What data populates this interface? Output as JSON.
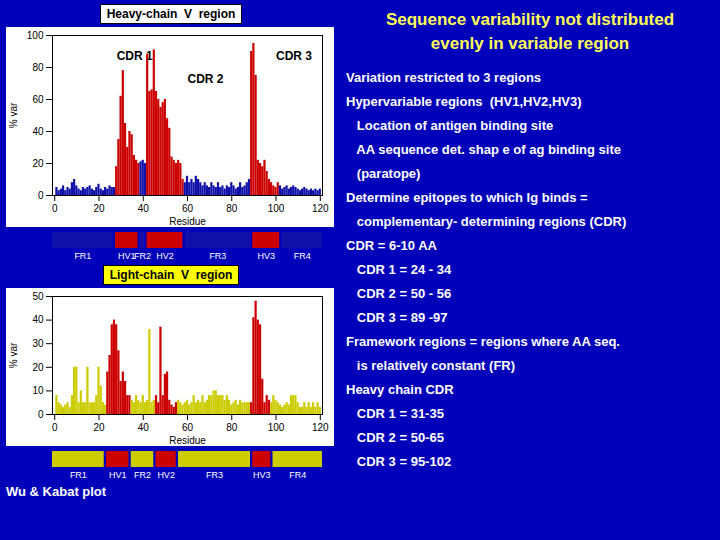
{
  "chart_data": [
    {
      "type": "bar",
      "title": "Heavy-chain  V  region",
      "xlabel": "Residue",
      "ylabel": "% var",
      "x": [
        1,
        2,
        3,
        4,
        5,
        6,
        7,
        8,
        9,
        10,
        11,
        12,
        13,
        14,
        15,
        16,
        17,
        18,
        19,
        20,
        21,
        22,
        23,
        24,
        25,
        26,
        27,
        28,
        29,
        30,
        31,
        32,
        33,
        34,
        35,
        36,
        37,
        38,
        39,
        40,
        41,
        42,
        43,
        44,
        45,
        46,
        47,
        48,
        49,
        50,
        51,
        52,
        53,
        54,
        55,
        56,
        57,
        58,
        59,
        60,
        61,
        62,
        63,
        64,
        65,
        66,
        67,
        68,
        69,
        70,
        71,
        72,
        73,
        74,
        75,
        76,
        77,
        78,
        79,
        80,
        81,
        82,
        83,
        84,
        85,
        86,
        87,
        88,
        89,
        90,
        91,
        92,
        93,
        94,
        95,
        96,
        97,
        98,
        99,
        100,
        101,
        102,
        103,
        104,
        105,
        106,
        107,
        108,
        109,
        110,
        111,
        112,
        113,
        114,
        115,
        116,
        117,
        118,
        119,
        120
      ],
      "values": [
        5,
        3,
        4,
        6,
        3,
        5,
        4,
        8,
        10,
        6,
        4,
        3,
        5,
        4,
        5,
        6,
        4,
        3,
        5,
        7,
        4,
        3,
        5,
        4,
        6,
        5,
        5,
        18,
        35,
        62,
        78,
        45,
        30,
        40,
        38,
        25,
        22,
        20,
        21,
        22,
        20,
        88,
        65,
        66,
        91,
        65,
        60,
        55,
        58,
        60,
        48,
        42,
        24,
        22,
        20,
        22,
        20,
        10,
        8,
        12,
        8,
        10,
        8,
        12,
        10,
        8,
        6,
        8,
        6,
        5,
        8,
        6,
        5,
        8,
        5,
        6,
        4,
        6,
        5,
        8,
        6,
        4,
        5,
        8,
        5,
        6,
        8,
        10,
        90,
        95,
        75,
        22,
        20,
        18,
        22,
        15,
        10,
        8,
        6,
        5,
        8,
        6,
        4,
        5,
        6,
        4,
        5,
        6,
        5,
        4,
        3,
        4,
        5,
        4,
        3,
        4,
        3,
        4,
        3,
        4
      ],
      "colors": [
        "#1111aa",
        "#1111aa",
        "#1111aa",
        "#1111aa",
        "#1111aa",
        "#1111aa",
        "#1111aa",
        "#1111aa",
        "#1111aa",
        "#1111aa",
        "#1111aa",
        "#1111aa",
        "#1111aa",
        "#1111aa",
        "#1111aa",
        "#1111aa",
        "#1111aa",
        "#1111aa",
        "#1111aa",
        "#1111aa",
        "#1111aa",
        "#1111aa",
        "#1111aa",
        "#1111aa",
        "#1111aa",
        "#1111aa",
        "#1111aa",
        "#cc0000",
        "#cc0000",
        "#cc0000",
        "#cc0000",
        "#cc0000",
        "#cc0000",
        "#cc0000",
        "#cc0000",
        "#cc0000",
        "#cc0000",
        "#cc0000",
        "#1111aa",
        "#1111aa",
        "#1111aa",
        "#cc0000",
        "#cc0000",
        "#cc0000",
        "#cc0000",
        "#cc0000",
        "#cc0000",
        "#cc0000",
        "#cc0000",
        "#cc0000",
        "#cc0000",
        "#cc0000",
        "#cc0000",
        "#cc0000",
        "#cc0000",
        "#cc0000",
        "#cc0000",
        "#cc0000",
        "#1111aa",
        "#1111aa",
        "#1111aa",
        "#1111aa",
        "#1111aa",
        "#1111aa",
        "#1111aa",
        "#1111aa",
        "#1111aa",
        "#1111aa",
        "#1111aa",
        "#1111aa",
        "#1111aa",
        "#1111aa",
        "#1111aa",
        "#1111aa",
        "#1111aa",
        "#1111aa",
        "#1111aa",
        "#1111aa",
        "#1111aa",
        "#1111aa",
        "#1111aa",
        "#1111aa",
        "#1111aa",
        "#1111aa",
        "#1111aa",
        "#1111aa",
        "#1111aa",
        "#1111aa",
        "#cc0000",
        "#cc0000",
        "#cc0000",
        "#cc0000",
        "#cc0000",
        "#cc0000",
        "#cc0000",
        "#cc0000",
        "#cc0000",
        "#cc0000",
        "#cc0000",
        "#cc0000",
        "#cc0000",
        "#1111aa",
        "#1111aa",
        "#1111aa",
        "#1111aa",
        "#1111aa",
        "#1111aa",
        "#1111aa",
        "#1111aa",
        "#1111aa",
        "#1111aa",
        "#1111aa",
        "#1111aa",
        "#1111aa",
        "#1111aa",
        "#1111aa",
        "#1111aa",
        "#1111aa",
        "#1111aa",
        "#1111aa"
      ],
      "xlim": [
        -1,
        121
      ],
      "xticks": [
        0,
        20,
        40,
        60,
        80,
        100,
        120
      ],
      "ylim": [
        0,
        100
      ],
      "yticks": [
        0,
        20,
        40,
        60,
        80,
        100
      ],
      "grid": false,
      "annotations": [
        {
          "text": "CDR 1",
          "x": 28,
          "y": 87
        },
        {
          "text": "CDR 2",
          "x": 60,
          "y": 73
        },
        {
          "text": "CDR 3",
          "x": 100,
          "y": 87
        }
      ],
      "regions": [
        {
          "name": "FR1",
          "start": 0,
          "end": 27,
          "color": "#1111aa"
        },
        {
          "name": "HV1",
          "start": 28,
          "end": 38,
          "color": "#cc0000"
        },
        {
          "name": "FR2",
          "start": 39,
          "end": 41,
          "color": "#1111aa"
        },
        {
          "name": "HV2",
          "start": 42,
          "end": 58,
          "color": "#cc0000"
        },
        {
          "name": "FR3",
          "start": 59,
          "end": 88,
          "color": "#1111aa"
        },
        {
          "name": "HV3",
          "start": 89,
          "end": 101,
          "color": "#cc0000"
        },
        {
          "name": "FR4",
          "start": 102,
          "end": 120,
          "color": "#1111aa"
        }
      ]
    },
    {
      "type": "bar",
      "title": "Light-chain  V  region",
      "xlabel": "Residue",
      "ylabel": "% var",
      "x": [
        1,
        2,
        3,
        4,
        5,
        6,
        7,
        8,
        9,
        10,
        11,
        12,
        13,
        14,
        15,
        16,
        17,
        18,
        19,
        20,
        21,
        22,
        23,
        24,
        25,
        26,
        27,
        28,
        29,
        30,
        31,
        32,
        33,
        34,
        35,
        36,
        37,
        38,
        39,
        40,
        41,
        42,
        43,
        44,
        45,
        46,
        47,
        48,
        49,
        50,
        51,
        52,
        53,
        54,
        55,
        56,
        57,
        58,
        59,
        60,
        61,
        62,
        63,
        64,
        65,
        66,
        67,
        68,
        69,
        70,
        71,
        72,
        73,
        74,
        75,
        76,
        77,
        78,
        79,
        80,
        81,
        82,
        83,
        84,
        85,
        86,
        87,
        88,
        89,
        90,
        91,
        92,
        93,
        94,
        95,
        96,
        97,
        98,
        99,
        100,
        101,
        102,
        103,
        104,
        105,
        106,
        107,
        108,
        109,
        110,
        111,
        112,
        113,
        114,
        115,
        116,
        117,
        118,
        119,
        120
      ],
      "values": [
        8,
        5,
        4,
        3,
        4,
        5,
        3,
        8,
        20,
        20,
        5,
        10,
        5,
        5,
        20,
        5,
        5,
        5,
        8,
        20,
        12,
        5,
        4,
        18,
        25,
        38,
        40,
        38,
        27,
        14,
        18,
        14,
        8,
        8,
        6,
        5,
        8,
        6,
        5,
        8,
        5,
        6,
        36,
        5,
        6,
        8,
        5,
        37,
        8,
        17,
        18,
        6,
        4,
        3,
        5,
        6,
        5,
        4,
        5,
        6,
        4,
        5,
        8,
        5,
        6,
        5,
        8,
        5,
        6,
        8,
        8,
        10,
        10,
        8,
        8,
        8,
        6,
        8,
        6,
        4,
        5,
        6,
        4,
        6,
        5,
        5,
        5,
        5,
        5,
        41,
        48,
        40,
        38,
        15,
        5,
        8,
        6,
        5,
        8,
        6,
        5,
        4,
        3,
        4,
        5,
        4,
        8,
        8,
        8,
        5,
        3,
        3,
        5,
        3,
        5,
        3,
        5,
        3,
        5,
        3
      ],
      "colors": [
        "#cccc00",
        "#cccc00",
        "#cccc00",
        "#cccc00",
        "#cccc00",
        "#cccc00",
        "#cccc00",
        "#cccc00",
        "#cccc00",
        "#cccc00",
        "#cccc00",
        "#cccc00",
        "#cccc00",
        "#cccc00",
        "#cccc00",
        "#cccc00",
        "#cccc00",
        "#cccc00",
        "#cccc00",
        "#cccc00",
        "#cccc00",
        "#cccc00",
        "#cccc00",
        "#cc0000",
        "#cc0000",
        "#cc0000",
        "#cc0000",
        "#cc0000",
        "#cc0000",
        "#cc0000",
        "#cc0000",
        "#cc0000",
        "#cc0000",
        "#cc0000",
        "#cccc00",
        "#cccc00",
        "#cccc00",
        "#cccc00",
        "#cccc00",
        "#cccc00",
        "#cccc00",
        "#cccc00",
        "#cccc00",
        "#cccc00",
        "#cccc00",
        "#cc0000",
        "#cc0000",
        "#cc0000",
        "#cc0000",
        "#cc0000",
        "#cc0000",
        "#cc0000",
        "#cc0000",
        "#cc0000",
        "#cc0000",
        "#cccc00",
        "#cccc00",
        "#cccc00",
        "#cccc00",
        "#cccc00",
        "#cccc00",
        "#cccc00",
        "#cccc00",
        "#cccc00",
        "#cccc00",
        "#cccc00",
        "#cccc00",
        "#cccc00",
        "#cccc00",
        "#cccc00",
        "#cccc00",
        "#cccc00",
        "#cccc00",
        "#cccc00",
        "#cccc00",
        "#cccc00",
        "#cccc00",
        "#cccc00",
        "#cccc00",
        "#cccc00",
        "#cccc00",
        "#cccc00",
        "#cccc00",
        "#cccc00",
        "#cccc00",
        "#cccc00",
        "#cccc00",
        "#cccc00",
        "#cc0000",
        "#cc0000",
        "#cc0000",
        "#cc0000",
        "#cc0000",
        "#cc0000",
        "#cc0000",
        "#cc0000",
        "#cc0000",
        "#cccc00",
        "#cccc00",
        "#cccc00",
        "#cccc00",
        "#cccc00",
        "#cccc00",
        "#cccc00",
        "#cccc00",
        "#cccc00",
        "#cccc00",
        "#cccc00",
        "#cccc00",
        "#cccc00",
        "#cccc00",
        "#cccc00",
        "#cccc00",
        "#cccc00",
        "#cccc00",
        "#cccc00",
        "#cccc00",
        "#cccc00",
        "#cccc00",
        "#cccc00"
      ],
      "xlim": [
        -1,
        121
      ],
      "xticks": [
        0,
        20,
        40,
        60,
        80,
        100,
        120
      ],
      "ylim": [
        0,
        50
      ],
      "yticks": [
        0,
        10,
        20,
        30,
        40,
        50
      ],
      "grid": false,
      "regions": [
        {
          "name": "FR1",
          "start": 0,
          "end": 23,
          "color": "#cccc00"
        },
        {
          "name": "HV1",
          "start": 24,
          "end": 34,
          "color": "#cc0000"
        },
        {
          "name": "FR2",
          "start": 35,
          "end": 45,
          "color": "#cccc00"
        },
        {
          "name": "HV2",
          "start": 46,
          "end": 55,
          "color": "#cc0000"
        },
        {
          "name": "FR3",
          "start": 56,
          "end": 88,
          "color": "#cccc00"
        },
        {
          "name": "HV3",
          "start": 89,
          "end": 97,
          "color": "#cc0000"
        },
        {
          "name": "FR4",
          "start": 98,
          "end": 120,
          "color": "#cccc00"
        }
      ]
    }
  ],
  "caption": "Wu & Kabat plot",
  "background": "#0000bb",
  "title": [
    "Sequence variability not distributed",
    "evenly in variable region"
  ],
  "title_color": "#ffff55",
  "annotations": [
    [
      "Variation restricted to 3 regions"
    ],
    [
      "Hypervariable regions",
      "  (HV1,HV2,HV3)"
    ],
    [
      "   Location of antigen binding site"
    ],
    [
      "   AA sequence det. shap e of ag binding site"
    ],
    [
      "   (paratope)"
    ],
    [
      "Determine epitopes to which Ig binds ="
    ],
    [
      "   complementary- determining regions",
      " (CDR)"
    ],
    [
      "CDR = 6-10 AA"
    ],
    [
      "   CDR 1 = 24 - 34"
    ],
    [
      "   CDR 2 = 50 - 56"
    ],
    [
      "   CDR 3 = 89 -97"
    ],
    [
      "Framework regions",
      " = regions where AA seq."
    ],
    [
      "   is relatively constant (FR)"
    ],
    [
      "Heavy chain CDR"
    ],
    [
      "   CDR 1 = 31-35"
    ],
    [
      "   CDR 2 = 50-65"
    ],
    [
      "   CDR 3 = 95-102"
    ]
  ]
}
